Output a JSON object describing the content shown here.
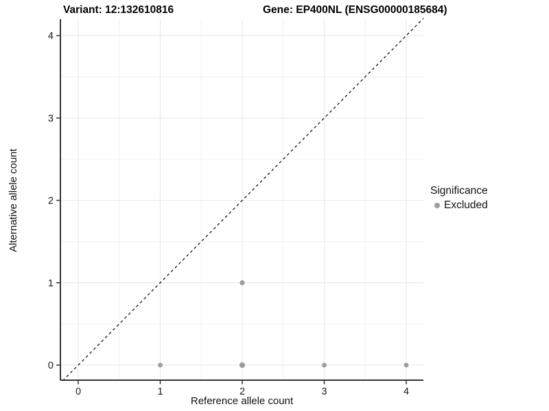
{
  "header": {
    "variant_title": "Variant: 12:132610816",
    "gene_title": "Gene: EP400NL (ENSG00000185684)"
  },
  "axes": {
    "x_label": "Reference allele count",
    "y_label": "Alternative allele count"
  },
  "legend": {
    "title": "Significance",
    "items": [
      {
        "label": "Excluded",
        "color": "#9c9c9c"
      }
    ]
  },
  "chart_data": {
    "type": "scatter",
    "title": "",
    "xlabel": "Reference allele count",
    "ylabel": "Alternative allele count",
    "x_ticks": [
      0,
      1,
      2,
      3,
      4
    ],
    "y_ticks": [
      0,
      1,
      2,
      3,
      4
    ],
    "x_tick_labels": [
      "0",
      "1",
      "2",
      "3",
      "4"
    ],
    "y_tick_labels": [
      "0",
      "1",
      "2",
      "3",
      "4"
    ],
    "xlim": [
      -0.21,
      4.21
    ],
    "ylim": [
      -0.19,
      4.22
    ],
    "grid": "major+minor",
    "minor_step": 0.5,
    "legend_position": "right",
    "series": [
      {
        "name": "Excluded",
        "color": "#9c9c9c",
        "points": [
          {
            "x": 1,
            "y": 0,
            "size": 3.4
          },
          {
            "x": 2,
            "y": 0,
            "size": 4.1
          },
          {
            "x": 3,
            "y": 0,
            "size": 3.4
          },
          {
            "x": 4,
            "y": 0,
            "size": 3.4
          },
          {
            "x": 2,
            "y": 1,
            "size": 3.6
          }
        ]
      }
    ],
    "abline": {
      "slope": 1,
      "intercept": 0,
      "style": "dashed",
      "color": "#000000"
    }
  },
  "style_colors": {
    "major_grid": "#e6e6e6",
    "minor_grid": "#f2f2f2",
    "axis_line": "#333333",
    "tick_label": "#1a1a1a"
  }
}
